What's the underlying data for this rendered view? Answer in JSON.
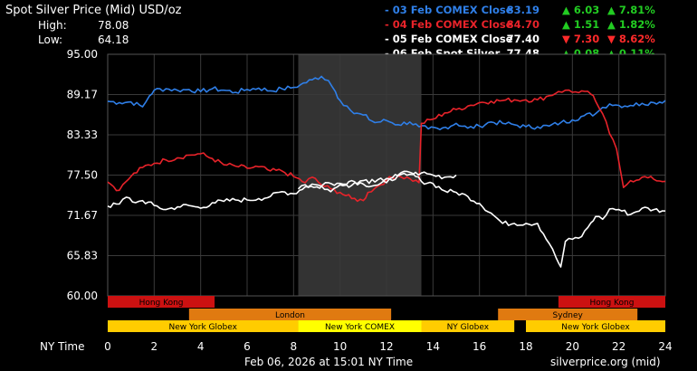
{
  "title": "Spot Silver Price (Mid) USD/oz",
  "high_label": "High:",
  "high_value": "78.08",
  "low_label": "Low:",
  "low_value": "64.18",
  "x_axis_label": "NY Time",
  "timestamp": "Feb 06, 2026 at 15:01 NY Time",
  "source": "silverprice.org (mid)",
  "colors": {
    "background": "#000000",
    "plot_background": "#000000",
    "grid": "#333333",
    "shaded_window": "#333333",
    "up": "#22cc22",
    "down": "#ff2a2a"
  },
  "legend": [
    {
      "label": "- 03 Feb COMEX Close",
      "price": "83.19",
      "change": "6.03",
      "pct": "7.81%",
      "direction": "up",
      "color": "#2f7fe8"
    },
    {
      "label": "- 04 Feb COMEX Close",
      "price": "84.70",
      "change": "1.51",
      "pct": "1.82%",
      "direction": "up",
      "color": "#e8232a"
    },
    {
      "label": "- 05 Feb COMEX Close",
      "price": "77.40",
      "change": "7.30",
      "pct": "8.62%",
      "direction": "down",
      "color": "#ffffff"
    },
    {
      "label": "- 06 Feb Spot Silver",
      "price": "77.48",
      "change": "0.08",
      "pct": "0.11%",
      "direction": "up",
      "color": "#ffffff"
    }
  ],
  "sessions": [
    {
      "name": "Hong Kong",
      "start": 0,
      "end": 4.6,
      "color": "#cc1111",
      "row": 0
    },
    {
      "name": "Hong Kong",
      "start": 19.4,
      "end": 24,
      "color": "#cc1111",
      "row": 0
    },
    {
      "name": "London",
      "start": 3.5,
      "end": 12.2,
      "color": "#e07a10",
      "row": 1
    },
    {
      "name": "Sydney",
      "start": 16.8,
      "end": 22.8,
      "color": "#e07a10",
      "row": 1
    },
    {
      "name": "New York Globex",
      "start": 0,
      "end": 8.2,
      "color": "#ffcc00",
      "row": 2
    },
    {
      "name": "New York COMEX",
      "start": 8.2,
      "end": 13.5,
      "color": "#ffff00",
      "row": 2
    },
    {
      "name": "NY Globex",
      "start": 13.5,
      "end": 17.5,
      "color": "#ffcc00",
      "row": 2
    },
    {
      "name": "New York Globex",
      "start": 18,
      "end": 24,
      "color": "#ffcc00",
      "row": 2
    }
  ],
  "chart_data": {
    "type": "line",
    "title": "Spot Silver Price (Mid) USD/oz",
    "xlabel": "NY Time",
    "ylabel": "",
    "xlim": [
      0,
      24
    ],
    "ylim": [
      60.0,
      95.0
    ],
    "x_ticks": [
      0,
      2,
      4,
      6,
      8,
      10,
      12,
      14,
      16,
      18,
      20,
      22,
      24
    ],
    "y_ticks": [
      "95.00",
      "89.17",
      "83.33",
      "77.50",
      "71.67",
      "65.83",
      "60.00"
    ],
    "shaded_window": [
      8.2,
      13.5
    ],
    "grid": true,
    "series": [
      {
        "name": "03 Feb COMEX Close",
        "color": "#2f7fe8",
        "x": [
          0,
          0.5,
          1,
          1.5,
          1.8,
          2,
          2.5,
          3,
          3.5,
          4,
          4.5,
          5,
          5.5,
          6,
          6.5,
          7,
          7.5,
          8,
          8.3,
          8.8,
          9.2,
          9.5,
          9.8,
          10,
          10.3,
          10.6,
          11,
          11.5,
          12,
          12.5,
          13,
          13.4,
          13.8,
          14.3,
          15,
          15.5,
          16,
          16.5,
          17,
          17.5,
          18,
          18.5,
          19,
          19.5,
          20,
          20.5,
          21,
          21.3,
          21.6,
          22,
          22.5,
          23,
          23.5,
          24
        ],
        "y": [
          88.2,
          88.0,
          88.1,
          87.4,
          89.0,
          89.8,
          90.0,
          89.8,
          89.9,
          89.6,
          90.0,
          89.8,
          89.5,
          89.9,
          90.1,
          89.7,
          90.0,
          90.2,
          90.6,
          91.3,
          91.8,
          91.2,
          89.6,
          88.3,
          87.5,
          86.4,
          86.2,
          85.1,
          85.4,
          84.8,
          85.2,
          84.5,
          84.2,
          84.1,
          85.0,
          84.3,
          84.6,
          85.2,
          85.0,
          84.8,
          84.5,
          84.5,
          84.6,
          85.1,
          85.5,
          86.1,
          86.4,
          87.3,
          87.8,
          87.6,
          87.6,
          87.9,
          88.0,
          88.3
        ]
      },
      {
        "name": "04 Feb COMEX Close",
        "color": "#e8232a",
        "x": [
          0,
          0.5,
          0.8,
          1,
          1.5,
          2,
          2.5,
          3,
          3.5,
          4,
          4.5,
          5,
          5.5,
          6,
          6.5,
          7,
          7.5,
          8,
          8.5,
          8.8,
          9.2,
          9.6,
          10,
          10.5,
          11,
          11.2,
          11.5,
          12,
          12.5,
          13,
          13.4,
          13.5,
          14,
          14.5,
          15,
          15.5,
          16,
          16.5,
          17,
          17.5,
          18,
          18.5,
          19,
          19.4,
          19.7,
          20,
          20.4,
          20.8,
          21,
          21.3,
          21.6,
          21.9,
          22.2,
          22.5,
          23,
          23.5,
          24
        ],
        "y": [
          76.5,
          75.3,
          76.6,
          77.3,
          78.6,
          79.2,
          79.7,
          80.0,
          80.4,
          80.6,
          79.9,
          79.0,
          78.8,
          78.5,
          78.7,
          78.1,
          78.1,
          77.3,
          76.4,
          77.2,
          76.1,
          75.5,
          75.0,
          74.1,
          73.8,
          75.0,
          75.6,
          76.8,
          77.4,
          77.0,
          76.4,
          85.0,
          85.6,
          86.5,
          87.0,
          87.5,
          88.0,
          88.2,
          88.3,
          88.4,
          88.4,
          88.4,
          89.0,
          89.6,
          89.8,
          89.5,
          89.7,
          89.2,
          88.2,
          86.4,
          83.5,
          81.3,
          75.7,
          76.7,
          77.2,
          76.9,
          76.6
        ]
      },
      {
        "name": "05 Feb COMEX Close",
        "color": "#ffffff",
        "x": [
          0,
          0.5,
          0.8,
          1.2,
          1.5,
          2,
          2.5,
          3,
          3.5,
          4,
          4.5,
          5,
          5.5,
          6,
          6.5,
          7,
          7.5,
          8,
          8.5,
          8.8,
          9.2,
          9.6,
          10,
          10.5,
          11,
          11.5,
          12,
          12.5,
          13,
          13.5,
          14,
          14.5,
          15,
          15.5,
          16,
          16.5,
          17,
          17.5,
          18,
          18.5,
          19,
          19.3,
          19.5,
          19.7,
          20,
          20.4,
          20.8,
          21,
          21.3,
          21.6,
          22,
          22.5,
          23,
          23.5,
          24
        ],
        "y": [
          73.0,
          73.3,
          74.3,
          73.5,
          73.8,
          73.1,
          72.5,
          72.9,
          73.1,
          72.7,
          73.5,
          73.7,
          73.9,
          73.9,
          74.1,
          74.4,
          75.1,
          74.8,
          75.8,
          76.2,
          75.9,
          75.1,
          76.1,
          76.7,
          76.2,
          76.0,
          76.4,
          77.5,
          77.9,
          76.6,
          76.3,
          75.2,
          75.0,
          74.4,
          73.4,
          72.0,
          70.5,
          70.5,
          70.5,
          70.5,
          67.6,
          65.5,
          64.2,
          67.9,
          68.2,
          68.6,
          70.6,
          71.5,
          71.1,
          72.6,
          72.5,
          71.8,
          72.7,
          72.5,
          72.3
        ]
      },
      {
        "name": "06 Feb Spot Silver",
        "color": "#ffffff",
        "x": [
          8.2,
          8.5,
          9,
          9.5,
          10,
          10.5,
          11,
          11.5,
          12,
          12.5,
          13,
          13.5,
          14,
          14.5,
          15
        ],
        "y": [
          75.5,
          76.1,
          75.8,
          76.4,
          76.3,
          76.0,
          76.7,
          76.5,
          77.0,
          77.4,
          77.6,
          77.8,
          77.5,
          77.2,
          77.5
        ]
      }
    ]
  }
}
